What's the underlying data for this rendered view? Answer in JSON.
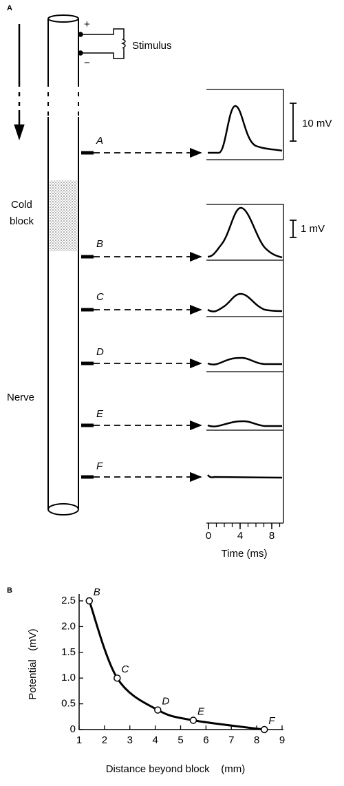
{
  "panel_a": {
    "label": "A",
    "plus": "+",
    "minus": "−",
    "stimulus": "Stimulus",
    "cold_block": [
      "Cold",
      "block"
    ],
    "nerve": "Nerve",
    "electrodes": [
      "A",
      "B",
      "C",
      "D",
      "E",
      "F"
    ],
    "scale_bars": [
      "10 mV",
      "1 mV"
    ],
    "time_ticks": [
      0,
      4,
      8
    ],
    "time_label": "Time (ms)"
  },
  "chart_data": {
    "type": "scatter",
    "label": "B",
    "x_label": "Distance beyond block    (mm)",
    "y_label": "Potential   (mV)",
    "xlim": [
      1,
      9
    ],
    "xticks": [
      1,
      2,
      3,
      4,
      5,
      6,
      7,
      8,
      9
    ],
    "ylim": [
      0,
      2.5
    ],
    "yticks": [
      0,
      0.5,
      {
        "value": 1,
        "label": "1.0"
      },
      1.5,
      {
        "value": 2,
        "label": "2.0"
      },
      2.5
    ],
    "series": [
      {
        "x": [
          1.4,
          2.5,
          4.1,
          5.5,
          8.3
        ],
        "values": [
          2.5,
          1.0,
          0.38,
          0.18,
          0.0
        ],
        "point_labels": [
          "B",
          "C",
          "D",
          "E",
          "F"
        ],
        "color": "#000000"
      }
    ]
  }
}
